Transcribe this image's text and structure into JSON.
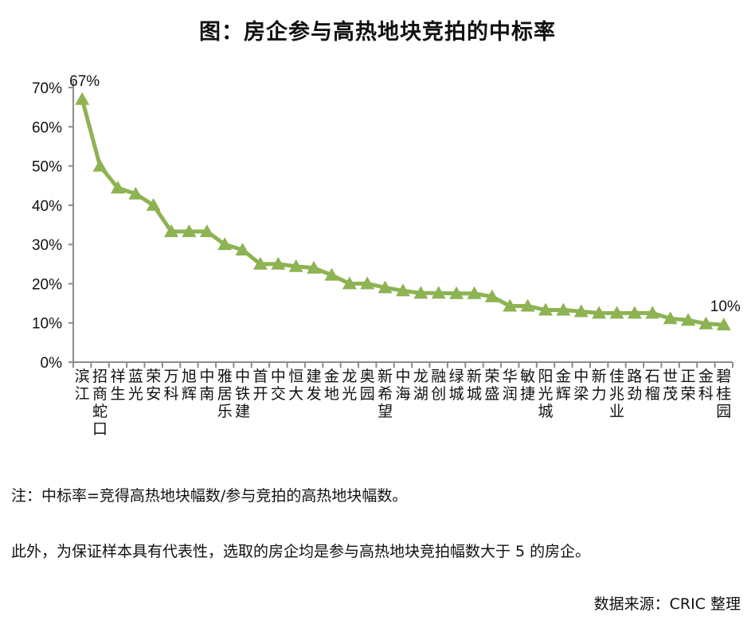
{
  "title": "图：房企参与高热地块竞拍的中标率",
  "notes": {
    "note1": "注：中标率=竞得高热地块幅数/参与竞拍的高热地块幅数。",
    "note2": "此外，为保证样本具有代表性，选取的房企均是参与高热地块竞拍幅数大于 5 的房企。",
    "source": "数据来源：CRIC 整理"
  },
  "colors": {
    "series": "#8db352",
    "axis": "#8c8c8c",
    "text": "#111111"
  },
  "chart_data": {
    "type": "line",
    "title": "图：房企参与高热地块竞拍的中标率",
    "xlabel": "",
    "ylabel": "",
    "ylim": [
      0,
      70
    ],
    "yticks": [
      "0%",
      "10%",
      "20%",
      "30%",
      "40%",
      "50%",
      "60%",
      "70%"
    ],
    "grid": false,
    "legend": null,
    "marker": "triangle",
    "categories": [
      "滨江",
      "招商蛇口",
      "祥生",
      "蓝光",
      "荣安",
      "万科",
      "旭辉",
      "中南",
      "雅居乐",
      "中铁建",
      "首开",
      "中交",
      "恒大",
      "建发",
      "金地",
      "龙光",
      "奥园",
      "新希望",
      "中海",
      "龙湖",
      "融创",
      "绿城",
      "新城",
      "荣盛",
      "华润",
      "敏捷",
      "阳光城",
      "金辉",
      "中梁",
      "新力",
      "佳兆业",
      "路劲",
      "石榴",
      "世茂",
      "正荣",
      "金科",
      "碧桂园"
    ],
    "series": [
      {
        "name": "中标率",
        "values": [
          67,
          50,
          44.4,
          42.9,
          40,
          33.3,
          33.3,
          33.3,
          30,
          28.6,
          25,
          25,
          24.4,
          24,
          22.2,
          20,
          20,
          19,
          18.2,
          17.6,
          17.6,
          17.5,
          17.5,
          16.7,
          14.3,
          14.3,
          13.3,
          13.3,
          12.9,
          12.5,
          12.5,
          12.5,
          12.5,
          11.1,
          10.7,
          9.8,
          9.5
        ]
      }
    ],
    "annotations": [
      {
        "index": 0,
        "text": "67%"
      },
      {
        "index": 36,
        "text": "10%"
      }
    ]
  }
}
